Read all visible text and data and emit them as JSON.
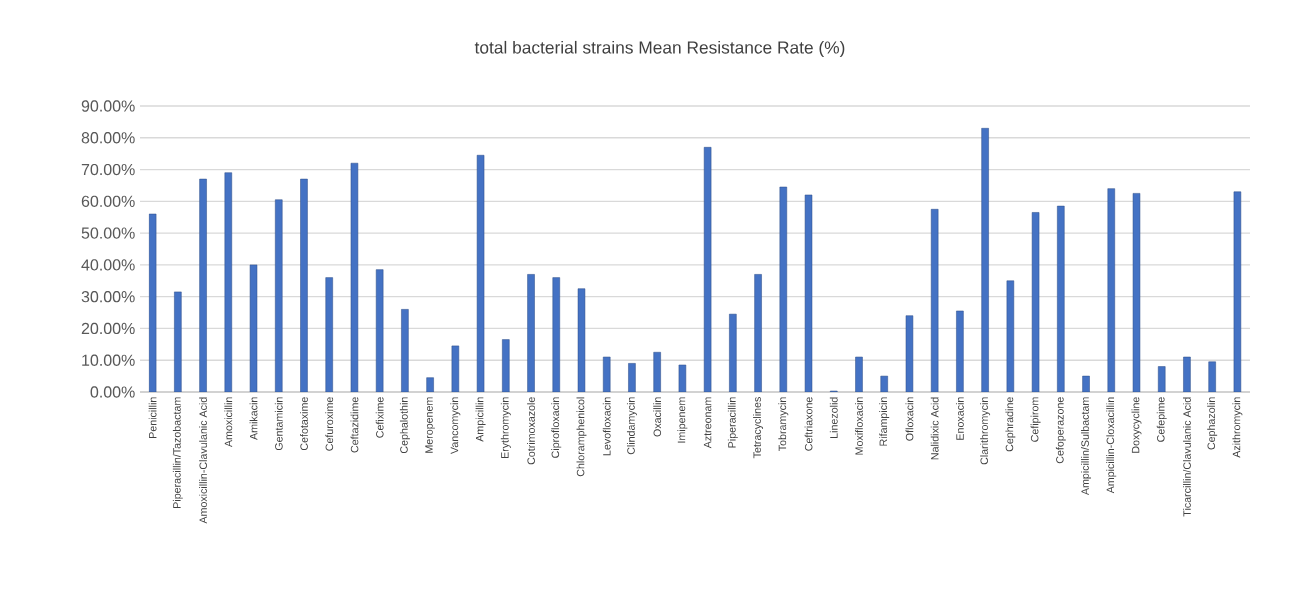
{
  "chart_data": {
    "type": "bar",
    "title": "total bacterial strains  Mean Resistance Rate (%)",
    "categories": [
      "Penicillin",
      "Piperacillin/Tazobactam",
      "Amoxicillin-Clavulanic Acid",
      "Amoxicillin",
      "Amikacin",
      "Gentamicin",
      "Cefotaxime",
      "Cefuroxime",
      "Ceftazidime",
      "Cefixime",
      "Cephalothin",
      "Meropenem",
      "Vancomycin",
      "Ampicillin",
      "Erythromycin",
      "Cotrimoxazole",
      "Ciprofloxacin",
      "Chloramphenicol",
      "Levofloxacin",
      "Clindamycin",
      "Oxacillin",
      "Imipenem",
      "Aztreonam",
      "Piperacillin",
      "Tetracyclines",
      "Tobramycin",
      "Ceftriaxone",
      "Linezolid",
      "Moxifloxacin",
      "Rifampicin",
      "Ofloxacin",
      "Nalidixic Acid",
      "Enoxacin",
      "Clarithromycin",
      "Cephradine",
      "Cefipirom",
      "Cefoperazone",
      "Ampicillin/Sulbactam",
      "Ampicillin-Cloxacillin",
      "Doxycycline",
      "Cefepime",
      "Ticarcillin/Clavulanic Acid",
      "Cephazolin",
      "Azithromycin"
    ],
    "values": [
      56,
      31.5,
      67,
      69,
      40,
      60.5,
      67,
      36,
      72,
      38.5,
      26,
      4.5,
      14.5,
      74.5,
      16.5,
      37,
      36,
      32.5,
      11,
      9,
      12.5,
      8.5,
      77,
      24.5,
      37,
      64.5,
      62,
      0.3,
      11,
      5,
      24,
      57.5,
      25.5,
      83,
      35,
      56.5,
      58.5,
      5,
      64,
      62.5,
      8,
      11,
      9.5,
      63
    ],
    "color": "#4472c4",
    "ylim": [
      0,
      90
    ],
    "yticks": [
      {
        "value": 0,
        "label": "0.00%"
      },
      {
        "value": 10,
        "label": "10.00%"
      },
      {
        "value": 20,
        "label": "20.00%"
      },
      {
        "value": 30,
        "label": "30.00%"
      },
      {
        "value": 40,
        "label": "40.00%"
      },
      {
        "value": 50,
        "label": "50.00%"
      },
      {
        "value": 60,
        "label": "60.00%"
      },
      {
        "value": 70,
        "label": "70.00%"
      },
      {
        "value": 80,
        "label": "80.00%"
      },
      {
        "value": 90,
        "label": "90.00%"
      }
    ],
    "grid": "y"
  }
}
